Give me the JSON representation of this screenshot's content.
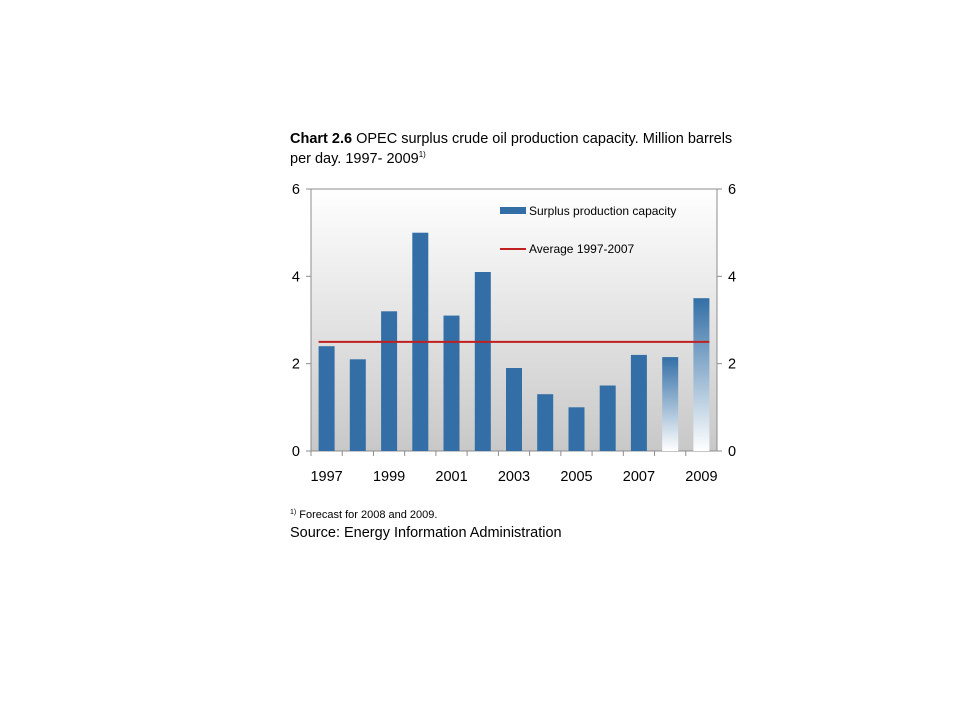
{
  "title": {
    "prefix": "Chart 2.6",
    "text": " OPEC surplus crude oil production capacity. Million barrels per day. 1997- 2009",
    "note_marker": "1)"
  },
  "footnote": {
    "marker": "1)",
    "text": "Forecast for 2008 and 2009."
  },
  "source": "Source: Energy Information Administration",
  "colors": {
    "bar": "#336fa6",
    "average_line": "#c0201f",
    "plot_bg_top": "#ffffff",
    "plot_bg_bottom": "#c8c8c8"
  },
  "chart_data": {
    "type": "bar",
    "categories": [
      "1997",
      "1998",
      "1999",
      "2000",
      "2001",
      "2002",
      "2003",
      "2004",
      "2005",
      "2006",
      "2007",
      "2008",
      "2009"
    ],
    "x_tick_labels": [
      "1997",
      "1999",
      "2001",
      "2003",
      "2005",
      "2007",
      "2009"
    ],
    "series": [
      {
        "name": "Surplus production capacity",
        "values": [
          2.4,
          2.1,
          3.2,
          5.0,
          3.1,
          4.1,
          1.9,
          1.3,
          1.0,
          1.5,
          2.2,
          2.15,
          3.5
        ],
        "forecast": [
          false,
          false,
          false,
          false,
          false,
          false,
          false,
          false,
          false,
          false,
          false,
          true,
          true
        ]
      },
      {
        "name": "Average 1997-2007",
        "type": "line",
        "value": 2.5,
        "from": "1997",
        "to": "2009"
      }
    ],
    "ylim": [
      0,
      6
    ],
    "y_ticks": [
      0,
      2,
      4,
      6
    ],
    "secondary_y_ticks": [
      0,
      2,
      4,
      6
    ],
    "legend_position": "top-right"
  }
}
